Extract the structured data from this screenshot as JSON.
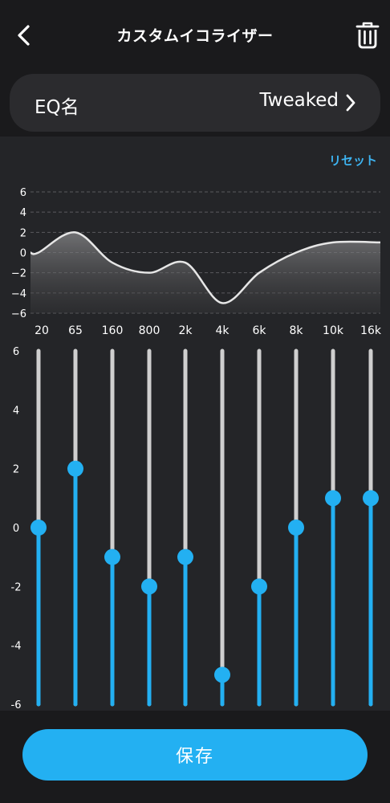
{
  "header": {
    "title": "カスタムイコライザー",
    "back_icon": "chevron-left-icon",
    "trash_icon": "trash-icon"
  },
  "eq_name": {
    "label": "EQ名",
    "value": "Tweaked",
    "chevron_icon": "chevron-right-icon"
  },
  "reset_label": "リセット",
  "graph": {
    "y_ticks": [
      "6",
      "4",
      "2",
      "0",
      "−2",
      "−4",
      "−6"
    ],
    "x_labels": [
      "20",
      "65",
      "160",
      "800",
      "2k",
      "4k",
      "6k",
      "8k",
      "10k",
      "16k"
    ]
  },
  "sliders": {
    "scale_labels": [
      "6",
      "4",
      "2",
      "0",
      "-2",
      "-4",
      "-6"
    ],
    "range": [
      -6,
      6
    ],
    "bands": [
      {
        "freq": "20",
        "gain": 0
      },
      {
        "freq": "65",
        "gain": 2
      },
      {
        "freq": "160",
        "gain": -1
      },
      {
        "freq": "800",
        "gain": -2
      },
      {
        "freq": "2k",
        "gain": -1
      },
      {
        "freq": "4k",
        "gain": -5
      },
      {
        "freq": "6k",
        "gain": -2
      },
      {
        "freq": "8k",
        "gain": 0
      },
      {
        "freq": "10k",
        "gain": 1
      },
      {
        "freq": "16k",
        "gain": 1
      }
    ]
  },
  "colors": {
    "accent": "#23b0f2",
    "track": "#cfcfcf",
    "background": "#1a1a1c",
    "panel": "#242528"
  },
  "save_label": "保存"
}
